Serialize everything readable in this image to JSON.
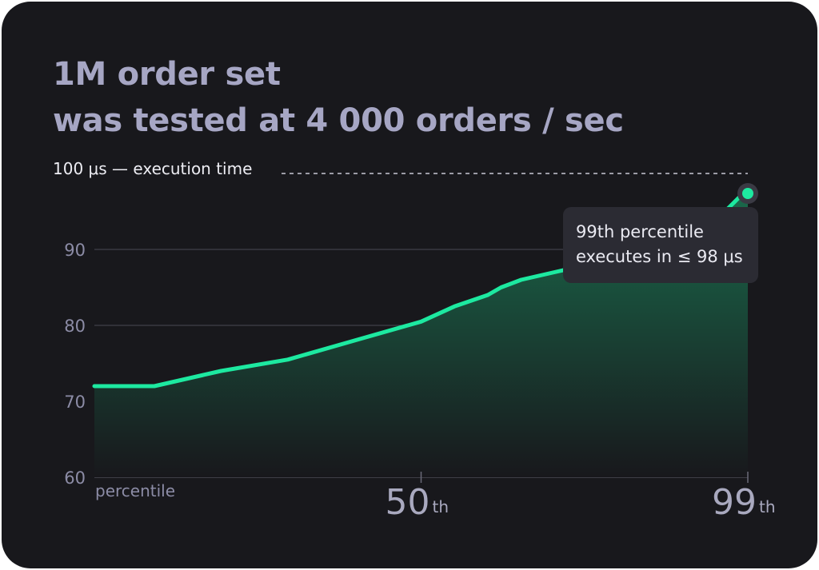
{
  "title": {
    "line1": "1M order set",
    "line2": "was tested at 4 000 orders / sec"
  },
  "tooltip": {
    "line1": "99th percentile",
    "line2": "executes in ≤ 98 μs"
  },
  "colors": {
    "background": "#18181c",
    "line": "#1de9a0",
    "area_top": "#1a6b4c",
    "grid": "#4a4a55",
    "text_muted": "#8c8ca6"
  },
  "chart_data": {
    "type": "area",
    "x": [
      1,
      10,
      20,
      30,
      40,
      50,
      55,
      60,
      62,
      65,
      70,
      75,
      80,
      85,
      90,
      95,
      99
    ],
    "values": [
      72,
      72,
      74,
      75.5,
      78,
      80.5,
      82.5,
      84,
      85,
      86,
      87,
      88,
      89,
      90.5,
      92,
      94.5,
      98
    ],
    "series": [
      {
        "values": [
          72,
          72,
          74,
          75.5,
          78,
          80.5,
          82.5,
          84,
          85,
          86,
          87,
          88,
          89,
          90.5,
          92,
          94.5,
          98
        ]
      }
    ],
    "ylim": [
      60,
      100
    ],
    "xlim": [
      1,
      99
    ],
    "yticks": [
      60,
      70,
      80,
      90
    ],
    "ytick_labels": [
      "60",
      "70",
      "80",
      "90"
    ],
    "xticks": [
      {
        "value": 50,
        "label": "50",
        "suffix": "th"
      },
      {
        "value": 99,
        "label": "99",
        "suffix": "th"
      }
    ],
    "xlabel": "percentile",
    "threshold": {
      "value": 100,
      "label": "100 μs — execution time"
    },
    "highlight": {
      "x": 99,
      "y": 98
    },
    "grid": true
  }
}
